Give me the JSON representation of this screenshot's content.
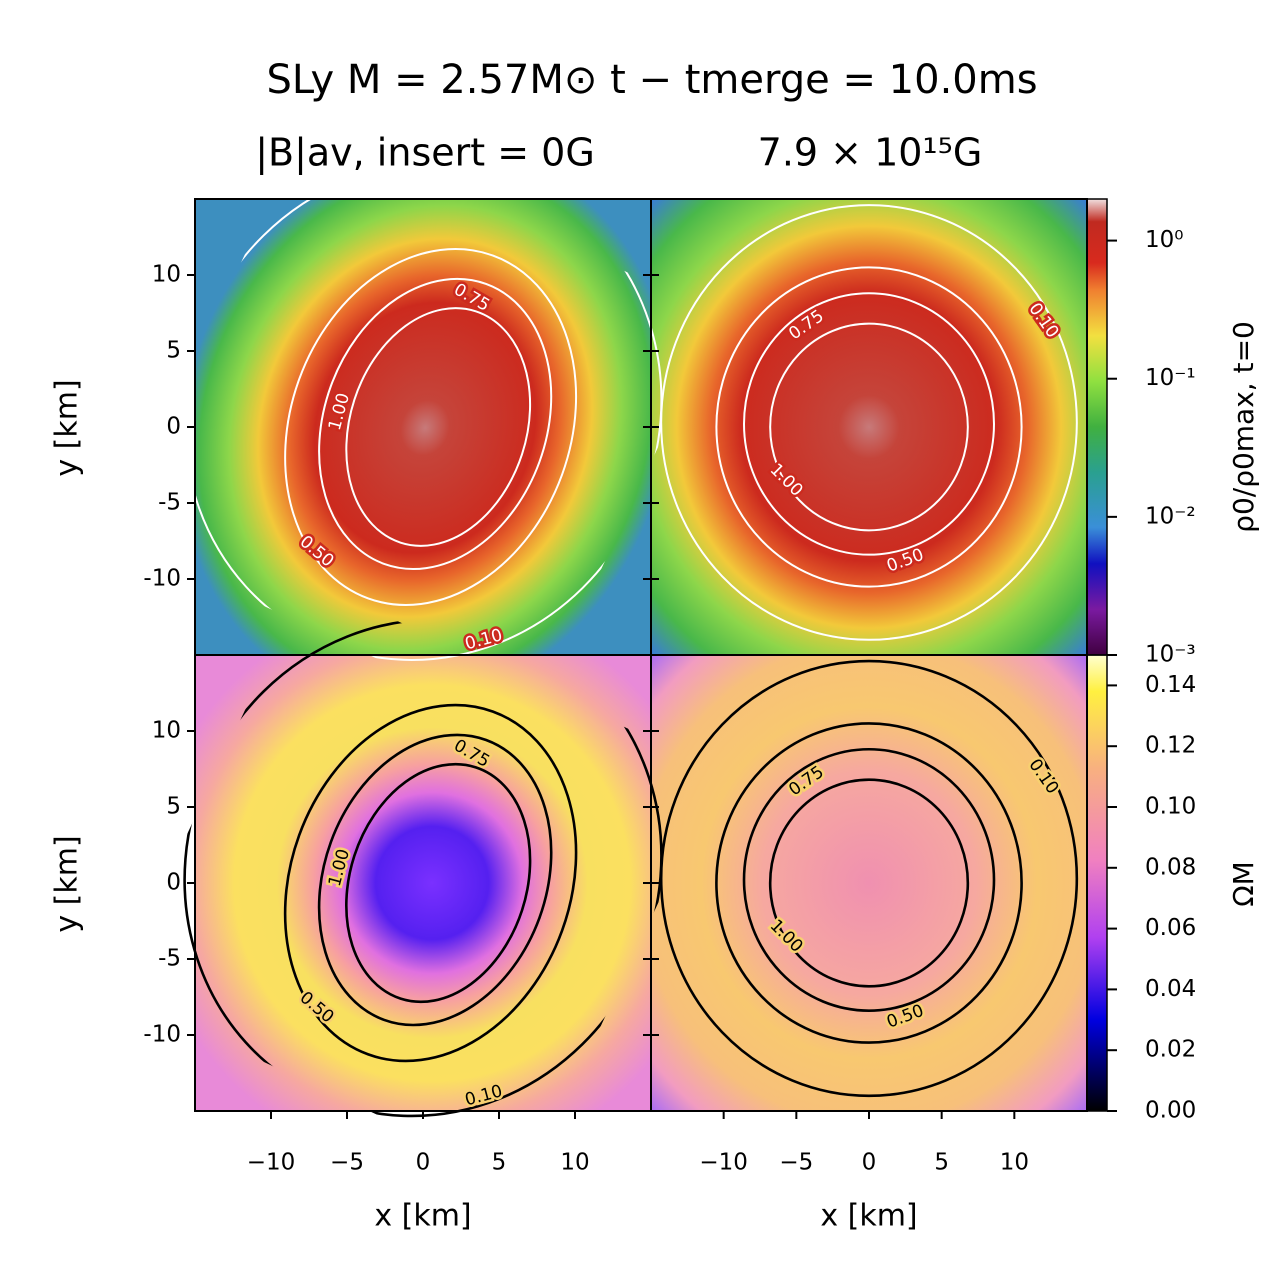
{
  "chart_data": {
    "type": "heatmap",
    "title": "SLy M = 2.57M⊙   t − tmerge = 10.0ms",
    "column_titles": [
      "|B|av, insert = 0G",
      "7.9 × 10¹⁵G"
    ],
    "xlabel": "x [km]",
    "ylabel": "y [km]",
    "xlim": [
      -15,
      15
    ],
    "ylim": [
      -15,
      15
    ],
    "xticks": [
      {
        "value": -10,
        "label": "−10"
      },
      {
        "value": -5,
        "label": "−5"
      },
      0,
      5,
      10
    ],
    "yticks": [
      10,
      5,
      0,
      -5,
      -10
    ],
    "contour_levels": [
      {
        "value": 0.1,
        "label": "0.10"
      },
      {
        "value": 0.5,
        "label": "0.50"
      },
      {
        "value": 0.75,
        "label": "0.75"
      },
      {
        "value": 1.0,
        "label": "1.00"
      }
    ],
    "colorbars": [
      {
        "label": "ρ0/ρ0max, t=0",
        "scale": "log",
        "lim": [
          0.001,
          2
        ],
        "ticks": [
          {
            "value": 1,
            "label": "10⁰"
          },
          {
            "value": 0.1,
            "label": "10⁻¹"
          },
          {
            "value": 0.01,
            "label": "10⁻²"
          },
          {
            "value": 0.001,
            "label": "10⁻³"
          }
        ]
      },
      {
        "label": "ΩM",
        "scale": "linear",
        "lim": [
          0,
          0.15
        ],
        "ticks": [
          {
            "value": 0,
            "label": "0.00"
          },
          {
            "value": 0.02,
            "label": "0.02"
          },
          {
            "value": 0.04,
            "label": "0.04"
          },
          {
            "value": 0.06,
            "label": "0.06"
          },
          {
            "value": 0.08,
            "label": "0.08"
          },
          {
            "value": 0.1,
            "label": "0.10"
          },
          {
            "value": 0.12,
            "label": "0.12"
          },
          {
            "value": 0.14,
            "label": "0.14"
          }
        ]
      }
    ]
  }
}
